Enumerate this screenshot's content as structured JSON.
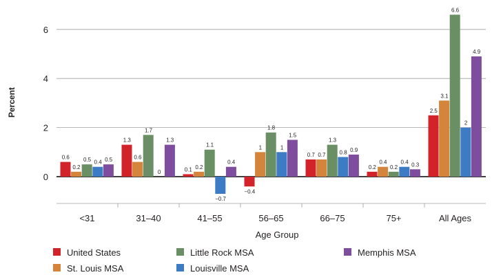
{
  "chart_data": {
    "type": "bar",
    "xlabel": "Age Group",
    "ylabel": "Percent",
    "ylim": [
      -1.1,
      6.8
    ],
    "yticks": [
      0,
      2,
      4,
      6
    ],
    "grid": "horizontal",
    "legend_position": "bottom",
    "categories": [
      "<31",
      "31–40",
      "41–55",
      "56–65",
      "66–75",
      "75+",
      "All Ages"
    ],
    "series": [
      {
        "name": "United States",
        "color": "#d2232a",
        "values": [
          0.6,
          1.3,
          0.1,
          -0.4,
          0.7,
          0.2,
          2.5
        ],
        "labels": [
          "0.6",
          "1.3",
          "0.1",
          "−0.4",
          "0.7",
          "0.2",
          "2.5"
        ]
      },
      {
        "name": "St. Louis MSA",
        "color": "#d5843b",
        "values": [
          0.2,
          0.6,
          0.2,
          1,
          0.7,
          0.4,
          3.1
        ],
        "labels": [
          "0.2",
          "0.6",
          "0.2",
          "1",
          "0.7",
          "0.4",
          "3.1"
        ]
      },
      {
        "name": "Little Rock MSA",
        "color": "#6a8f64",
        "values": [
          0.5,
          1.7,
          1.1,
          1.8,
          1.3,
          0.2,
          6.6
        ],
        "labels": [
          "0.5",
          "1.7",
          "1.1",
          "1.8",
          "1.3",
          "0.2",
          "6.6"
        ]
      },
      {
        "name": "Louisville MSA",
        "color": "#3d7cc4",
        "values": [
          0.4,
          0,
          -0.7,
          1,
          0.8,
          0.4,
          2
        ],
        "labels": [
          "0.4",
          "0",
          "−0.7",
          "1",
          "0.8",
          "0.4",
          "2"
        ]
      },
      {
        "name": "Memphis MSA",
        "color": "#7e4d9e",
        "values": [
          0.5,
          1.3,
          0.4,
          1.5,
          0.9,
          0.3,
          4.9
        ],
        "labels": [
          "0.5",
          "1.3",
          "0.4",
          "1.5",
          "0.9",
          "0.3",
          "4.9"
        ]
      }
    ]
  }
}
